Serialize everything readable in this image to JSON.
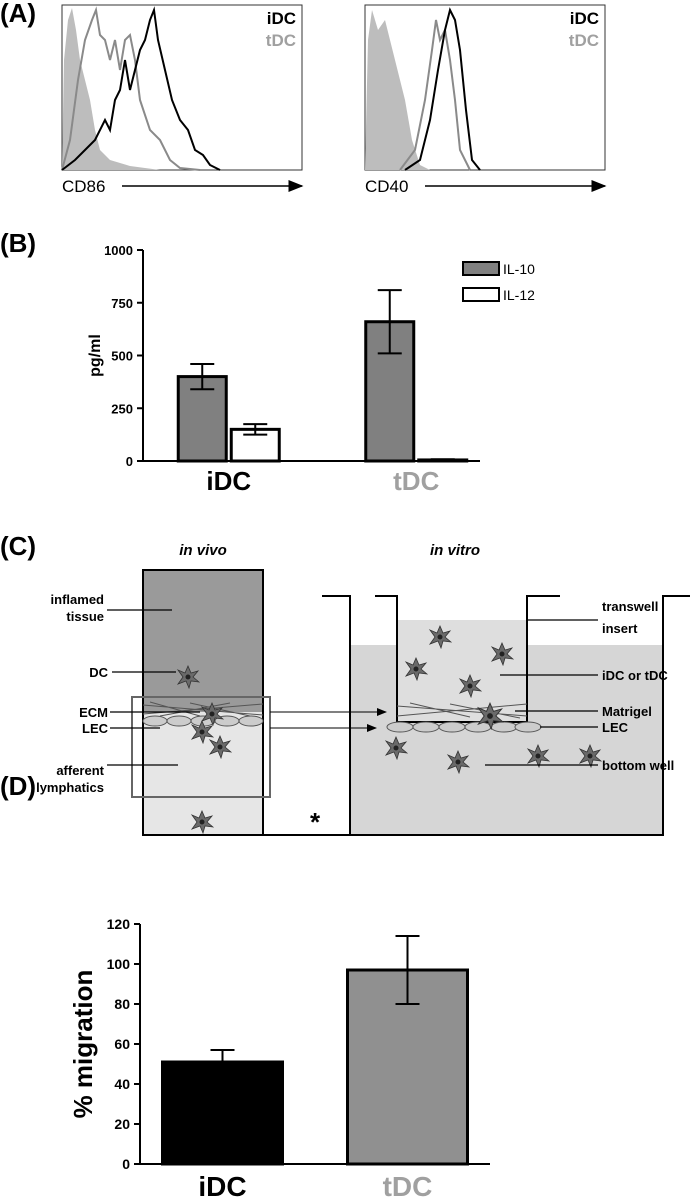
{
  "panel_labels": [
    "(A)",
    "(B)",
    "(C)",
    "(D)"
  ],
  "panel_a": {
    "plots": [
      {
        "axis_label": "CD86",
        "legend": [
          "iDC",
          "tDC"
        ]
      },
      {
        "axis_label": "CD40",
        "legend": [
          "iDC",
          "tDC"
        ]
      }
    ]
  },
  "chart_data": [
    {
      "type": "bar",
      "ylabel": "pg/ml",
      "categories": [
        "iDC",
        "tDC"
      ],
      "category_colors": [
        "#000000",
        "#a0a0a0"
      ],
      "series": [
        {
          "name": "IL-10",
          "color": "#808080",
          "values": [
            400,
            660
          ],
          "errors": [
            60,
            150
          ]
        },
        {
          "name": "IL-12",
          "color": "#ffffff",
          "values": [
            150,
            5
          ],
          "errors": [
            25,
            3
          ]
        }
      ],
      "ylim": [
        0,
        1000
      ],
      "yticks": [
        0,
        250,
        500,
        750,
        1000
      ],
      "grid": false
    },
    {
      "type": "bar",
      "ylabel": "% migration",
      "categories": [
        "iDC",
        "tDC"
      ],
      "category_colors": [
        "#000000",
        "#a0a0a0"
      ],
      "values": [
        51,
        97
      ],
      "errors": [
        6,
        17
      ],
      "colors": [
        "#000000",
        "#909090"
      ],
      "ylim": [
        0,
        120
      ],
      "yticks": [
        0,
        20,
        40,
        60,
        80,
        100,
        120
      ],
      "grid": false,
      "significance": "*"
    }
  ],
  "panel_c": {
    "in_vivo": {
      "title": "in vivo",
      "labels": [
        [
          "inflamed",
          "tissue"
        ],
        [
          "DC"
        ],
        [
          "ECM"
        ],
        [
          "LEC"
        ],
        [
          "afferent",
          "lymphatics"
        ]
      ]
    },
    "in_vitro": {
      "title": "in vitro",
      "labels": [
        [
          "transwell",
          "insert"
        ],
        [
          "iDC or tDC"
        ],
        [
          "Matrigel"
        ],
        [
          "LEC"
        ],
        [
          "bottom well"
        ]
      ]
    }
  }
}
